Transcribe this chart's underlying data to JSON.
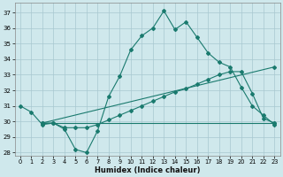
{
  "xlabel": "Humidex (Indice chaleur)",
  "xlim": [
    -0.5,
    23.5
  ],
  "ylim": [
    27.8,
    37.6
  ],
  "yticks": [
    28,
    29,
    30,
    31,
    32,
    33,
    34,
    35,
    36,
    37
  ],
  "xticks": [
    0,
    1,
    2,
    3,
    4,
    5,
    6,
    7,
    8,
    9,
    10,
    11,
    12,
    13,
    14,
    15,
    16,
    17,
    18,
    19,
    20,
    21,
    22,
    23
  ],
  "bg_color": "#cfe8ec",
  "grid_color": "#a8c8d0",
  "line_color": "#1a7a6e",
  "lines": [
    {
      "x": [
        0,
        1,
        2,
        3,
        4,
        5,
        6,
        7,
        8,
        9,
        10,
        11,
        12,
        13,
        14,
        15,
        16,
        17,
        18,
        19,
        20,
        21,
        22,
        23
      ],
      "y": [
        31.0,
        30.6,
        29.8,
        29.9,
        29.5,
        28.2,
        28.0,
        29.4,
        31.6,
        32.9,
        34.6,
        35.5,
        36.0,
        37.1,
        35.9,
        36.4,
        35.4,
        34.4,
        33.8,
        33.5,
        32.2,
        31.0,
        30.4,
        29.8
      ],
      "marker": "D",
      "markersize": 2.0
    },
    {
      "x": [
        2,
        3,
        4,
        5,
        6,
        7,
        8,
        9,
        10,
        11,
        12,
        13,
        14,
        15,
        16,
        17,
        18,
        19,
        20,
        21,
        22,
        23
      ],
      "y": [
        29.9,
        29.9,
        29.6,
        29.6,
        29.6,
        29.8,
        30.1,
        30.4,
        30.7,
        31.0,
        31.3,
        31.6,
        31.9,
        32.1,
        32.4,
        32.7,
        33.0,
        33.2,
        33.2,
        31.8,
        30.2,
        29.9
      ],
      "marker": "D",
      "markersize": 2.0
    },
    {
      "x": [
        2,
        23
      ],
      "y": [
        29.9,
        29.9
      ],
      "marker": "D",
      "markersize": 2.0
    },
    {
      "x": [
        2,
        23
      ],
      "y": [
        29.9,
        33.5
      ],
      "marker": "D",
      "markersize": 2.0
    }
  ]
}
